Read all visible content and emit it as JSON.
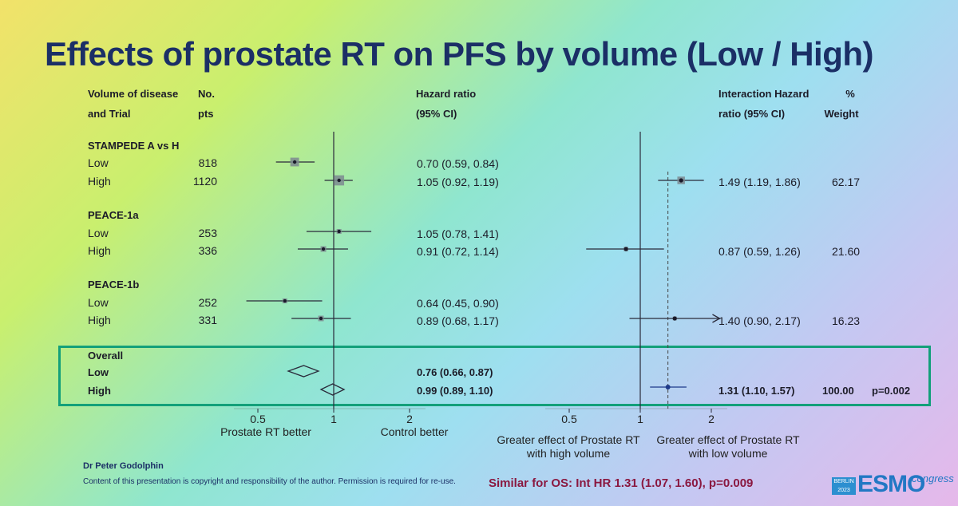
{
  "title": "Effects of prostate RT on PFS by volume (Low / High)",
  "headers": {
    "volume_line1": "Volume of disease",
    "volume_line2": "and Trial",
    "pts_line1": "No.",
    "pts_line2": "pts",
    "hr_line1": "Hazard ratio",
    "hr_line2": "(95% CI)",
    "ihr_line1": "Interaction Hazard",
    "ihr_line2": "ratio (95% CI)",
    "weight_line1": "%",
    "weight_line2": "Weight"
  },
  "chart_data": [
    {
      "type": "forest",
      "xscale": "log",
      "x_ticks": [
        0.5,
        1,
        2
      ],
      "x_tick_labels": [
        "0.5",
        "1",
        "2"
      ],
      "reference_line": 1,
      "left_label": "Prostate RT better",
      "right_label": "Control better",
      "groups": [
        {
          "name": "STAMPEDE A vs H",
          "rows": [
            {
              "label": "Low",
              "n": 818,
              "hr": 0.7,
              "lo": 0.59,
              "hi": 0.84,
              "text": "0.70 (0.59, 0.84)"
            },
            {
              "label": "High",
              "n": 1120,
              "hr": 1.05,
              "lo": 0.92,
              "hi": 1.19,
              "text": "1.05 (0.92, 1.19)"
            }
          ]
        },
        {
          "name": "PEACE-1a",
          "rows": [
            {
              "label": "Low",
              "n": 253,
              "hr": 1.05,
              "lo": 0.78,
              "hi": 1.41,
              "text": "1.05 (0.78, 1.41)"
            },
            {
              "label": "High",
              "n": 336,
              "hr": 0.91,
              "lo": 0.72,
              "hi": 1.14,
              "text": "0.91 (0.72, 1.14)"
            }
          ]
        },
        {
          "name": "PEACE-1b",
          "rows": [
            {
              "label": "Low",
              "n": 252,
              "hr": 0.64,
              "lo": 0.45,
              "hi": 0.9,
              "text": "0.64 (0.45, 0.90)"
            },
            {
              "label": "High",
              "n": 331,
              "hr": 0.89,
              "lo": 0.68,
              "hi": 1.17,
              "text": "0.89 (0.68, 1.17)"
            }
          ]
        }
      ],
      "overall": {
        "name": "Overall",
        "rows": [
          {
            "label": "Low",
            "hr": 0.76,
            "lo": 0.66,
            "hi": 0.87,
            "text": "0.76 (0.66, 0.87)"
          },
          {
            "label": "High",
            "hr": 0.99,
            "lo": 0.89,
            "hi": 1.1,
            "text": "0.99 (0.89, 1.10)"
          }
        ]
      }
    },
    {
      "type": "forest",
      "xscale": "log",
      "x_ticks": [
        0.5,
        1,
        2
      ],
      "x_tick_labels": [
        "0.5",
        "1",
        "2"
      ],
      "reference_line": 1,
      "dashed_line": 1.31,
      "left_label": "Greater effect of Prostate RT with high volume",
      "right_label": "Greater effect of Prostate RT with low volume",
      "rows": [
        {
          "trial": "STAMPEDE A vs H",
          "hr": 1.49,
          "lo": 1.19,
          "hi": 1.86,
          "text": "1.49 (1.19, 1.86)",
          "weight": "62.17"
        },
        {
          "trial": "PEACE-1a",
          "hr": 0.87,
          "lo": 0.59,
          "hi": 1.26,
          "text": "0.87 (0.59, 1.26)",
          "weight": "21.60"
        },
        {
          "trial": "PEACE-1b",
          "hr": 1.4,
          "lo": 0.9,
          "hi": 2.17,
          "text": "1.40 (0.90, 2.17)",
          "weight": "16.23",
          "arrow_right": true
        }
      ],
      "overall": {
        "hr": 1.31,
        "lo": 1.1,
        "hi": 1.57,
        "text": "1.31 (1.10, 1.57)",
        "weight": "100.00",
        "p": "p=0.002"
      }
    }
  ],
  "left_axis": {
    "left_label": "Prostate RT better",
    "right_label": "Control better"
  },
  "right_axis": {
    "left_line1": "Greater effect of Prostate RT",
    "left_line2": "with high volume",
    "right_line1": "Greater effect of Prostate RT",
    "right_line2": "with low volume"
  },
  "footer": {
    "author": "Dr Peter Godolphin",
    "copyright": "Content of this presentation is copyright and responsibility of the author. Permission is required for re-use.",
    "similar": "Similar for OS: Int HR 1.31 (1.07, 1.60), p=0.009",
    "logo_city": "BERLIN",
    "logo_year": "2023",
    "logo_text": "ESMO",
    "logo_suffix": "congress"
  },
  "colors": {
    "title": "#1b2f66",
    "overall_box": "#13a07a",
    "similar_text": "#8a1840"
  }
}
